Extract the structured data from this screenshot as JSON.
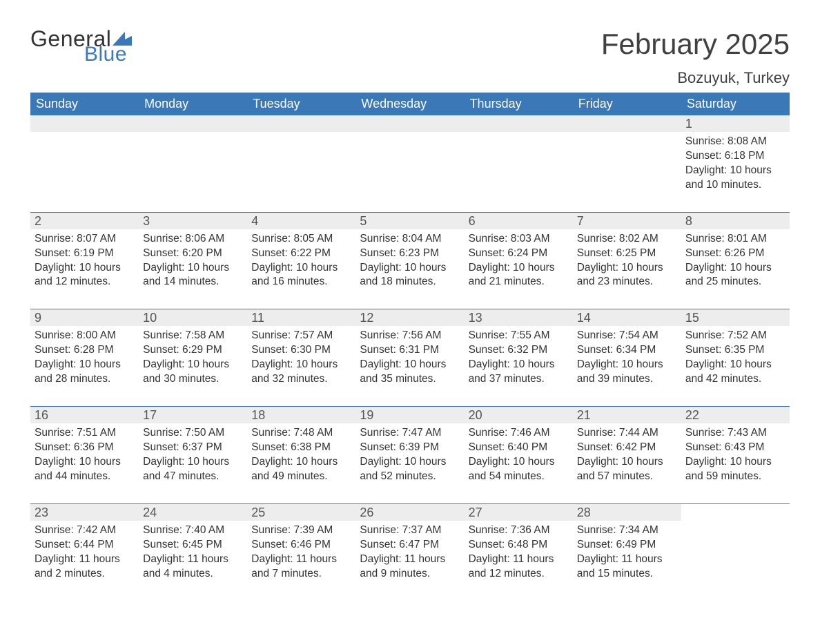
{
  "logo": {
    "text_general": "General",
    "text_blue": "Blue",
    "flag_color": "#3a78b8"
  },
  "title": "February 2025",
  "location": "Bozuyuk, Turkey",
  "colors": {
    "header_bg": "#3a78b8",
    "header_text": "#ffffff",
    "daynum_bg": "#ededed",
    "body_text": "#333333",
    "separator": "#3a78b8",
    "page_bg": "#ffffff"
  },
  "day_headers": [
    "Sunday",
    "Monday",
    "Tuesday",
    "Wednesday",
    "Thursday",
    "Friday",
    "Saturday"
  ],
  "weeks": [
    [
      {
        "n": "",
        "sunrise": "",
        "sunset": "",
        "daylight": ""
      },
      {
        "n": "",
        "sunrise": "",
        "sunset": "",
        "daylight": ""
      },
      {
        "n": "",
        "sunrise": "",
        "sunset": "",
        "daylight": ""
      },
      {
        "n": "",
        "sunrise": "",
        "sunset": "",
        "daylight": ""
      },
      {
        "n": "",
        "sunrise": "",
        "sunset": "",
        "daylight": ""
      },
      {
        "n": "",
        "sunrise": "",
        "sunset": "",
        "daylight": ""
      },
      {
        "n": "1",
        "sunrise": "Sunrise: 8:08 AM",
        "sunset": "Sunset: 6:18 PM",
        "daylight": "Daylight: 10 hours and 10 minutes."
      }
    ],
    [
      {
        "n": "2",
        "sunrise": "Sunrise: 8:07 AM",
        "sunset": "Sunset: 6:19 PM",
        "daylight": "Daylight: 10 hours and 12 minutes."
      },
      {
        "n": "3",
        "sunrise": "Sunrise: 8:06 AM",
        "sunset": "Sunset: 6:20 PM",
        "daylight": "Daylight: 10 hours and 14 minutes."
      },
      {
        "n": "4",
        "sunrise": "Sunrise: 8:05 AM",
        "sunset": "Sunset: 6:22 PM",
        "daylight": "Daylight: 10 hours and 16 minutes."
      },
      {
        "n": "5",
        "sunrise": "Sunrise: 8:04 AM",
        "sunset": "Sunset: 6:23 PM",
        "daylight": "Daylight: 10 hours and 18 minutes."
      },
      {
        "n": "6",
        "sunrise": "Sunrise: 8:03 AM",
        "sunset": "Sunset: 6:24 PM",
        "daylight": "Daylight: 10 hours and 21 minutes."
      },
      {
        "n": "7",
        "sunrise": "Sunrise: 8:02 AM",
        "sunset": "Sunset: 6:25 PM",
        "daylight": "Daylight: 10 hours and 23 minutes."
      },
      {
        "n": "8",
        "sunrise": "Sunrise: 8:01 AM",
        "sunset": "Sunset: 6:26 PM",
        "daylight": "Daylight: 10 hours and 25 minutes."
      }
    ],
    [
      {
        "n": "9",
        "sunrise": "Sunrise: 8:00 AM",
        "sunset": "Sunset: 6:28 PM",
        "daylight": "Daylight: 10 hours and 28 minutes."
      },
      {
        "n": "10",
        "sunrise": "Sunrise: 7:58 AM",
        "sunset": "Sunset: 6:29 PM",
        "daylight": "Daylight: 10 hours and 30 minutes."
      },
      {
        "n": "11",
        "sunrise": "Sunrise: 7:57 AM",
        "sunset": "Sunset: 6:30 PM",
        "daylight": "Daylight: 10 hours and 32 minutes."
      },
      {
        "n": "12",
        "sunrise": "Sunrise: 7:56 AM",
        "sunset": "Sunset: 6:31 PM",
        "daylight": "Daylight: 10 hours and 35 minutes."
      },
      {
        "n": "13",
        "sunrise": "Sunrise: 7:55 AM",
        "sunset": "Sunset: 6:32 PM",
        "daylight": "Daylight: 10 hours and 37 minutes."
      },
      {
        "n": "14",
        "sunrise": "Sunrise: 7:54 AM",
        "sunset": "Sunset: 6:34 PM",
        "daylight": "Daylight: 10 hours and 39 minutes."
      },
      {
        "n": "15",
        "sunrise": "Sunrise: 7:52 AM",
        "sunset": "Sunset: 6:35 PM",
        "daylight": "Daylight: 10 hours and 42 minutes."
      }
    ],
    [
      {
        "n": "16",
        "sunrise": "Sunrise: 7:51 AM",
        "sunset": "Sunset: 6:36 PM",
        "daylight": "Daylight: 10 hours and 44 minutes."
      },
      {
        "n": "17",
        "sunrise": "Sunrise: 7:50 AM",
        "sunset": "Sunset: 6:37 PM",
        "daylight": "Daylight: 10 hours and 47 minutes."
      },
      {
        "n": "18",
        "sunrise": "Sunrise: 7:48 AM",
        "sunset": "Sunset: 6:38 PM",
        "daylight": "Daylight: 10 hours and 49 minutes."
      },
      {
        "n": "19",
        "sunrise": "Sunrise: 7:47 AM",
        "sunset": "Sunset: 6:39 PM",
        "daylight": "Daylight: 10 hours and 52 minutes."
      },
      {
        "n": "20",
        "sunrise": "Sunrise: 7:46 AM",
        "sunset": "Sunset: 6:40 PM",
        "daylight": "Daylight: 10 hours and 54 minutes."
      },
      {
        "n": "21",
        "sunrise": "Sunrise: 7:44 AM",
        "sunset": "Sunset: 6:42 PM",
        "daylight": "Daylight: 10 hours and 57 minutes."
      },
      {
        "n": "22",
        "sunrise": "Sunrise: 7:43 AM",
        "sunset": "Sunset: 6:43 PM",
        "daylight": "Daylight: 10 hours and 59 minutes."
      }
    ],
    [
      {
        "n": "23",
        "sunrise": "Sunrise: 7:42 AM",
        "sunset": "Sunset: 6:44 PM",
        "daylight": "Daylight: 11 hours and 2 minutes."
      },
      {
        "n": "24",
        "sunrise": "Sunrise: 7:40 AM",
        "sunset": "Sunset: 6:45 PM",
        "daylight": "Daylight: 11 hours and 4 minutes."
      },
      {
        "n": "25",
        "sunrise": "Sunrise: 7:39 AM",
        "sunset": "Sunset: 6:46 PM",
        "daylight": "Daylight: 11 hours and 7 minutes."
      },
      {
        "n": "26",
        "sunrise": "Sunrise: 7:37 AM",
        "sunset": "Sunset: 6:47 PM",
        "daylight": "Daylight: 11 hours and 9 minutes."
      },
      {
        "n": "27",
        "sunrise": "Sunrise: 7:36 AM",
        "sunset": "Sunset: 6:48 PM",
        "daylight": "Daylight: 11 hours and 12 minutes."
      },
      {
        "n": "28",
        "sunrise": "Sunrise: 7:34 AM",
        "sunset": "Sunset: 6:49 PM",
        "daylight": "Daylight: 11 hours and 15 minutes."
      },
      {
        "n": "",
        "sunrise": "",
        "sunset": "",
        "daylight": ""
      }
    ]
  ]
}
